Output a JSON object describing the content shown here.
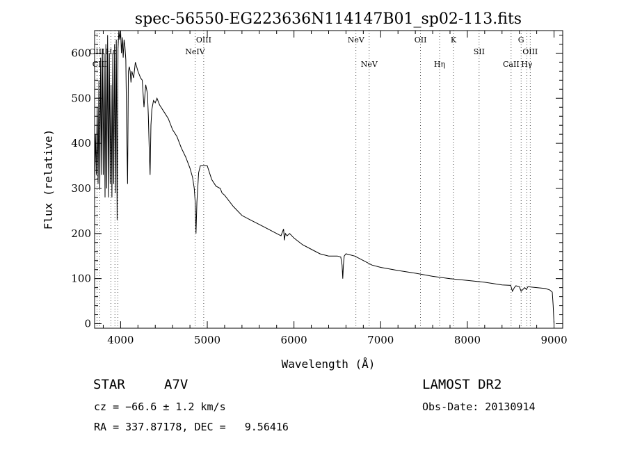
{
  "chart_data": {
    "type": "line",
    "title": "spec-56550-EG223636N114147B01_sp02-113.fits",
    "xlabel": "Wavelength (Å)",
    "ylabel": "Flux (relative)",
    "xlim": [
      3700,
      9100
    ],
    "ylim": [
      -10,
      650
    ],
    "xticks": [
      4000,
      5000,
      6000,
      7000,
      8000,
      9000
    ],
    "yticks": [
      0,
      100,
      200,
      300,
      400,
      500,
      600
    ],
    "grid": false,
    "series": [
      {
        "x": [
          3700,
          3710,
          3720,
          3730,
          3740,
          3750,
          3760,
          3770,
          3780,
          3790,
          3800,
          3810,
          3820,
          3830,
          3840,
          3850,
          3860,
          3870,
          3880,
          3890,
          3900,
          3910,
          3920,
          3930,
          3940,
          3950,
          3960,
          3970,
          3980,
          3990,
          4000,
          4010,
          4020,
          4030,
          4040,
          4050,
          4060,
          4070,
          4080,
          4090,
          4100,
          4110,
          4120,
          4130,
          4150,
          4170,
          4200,
          4230,
          4250,
          4270,
          4290,
          4310,
          4320,
          4330,
          4340,
          4350,
          4360,
          4380,
          4400,
          4420,
          4450,
          4500,
          4550,
          4600,
          4650,
          4700,
          4750,
          4800,
          4830,
          4850,
          4860,
          4870,
          4880,
          4900,
          4920,
          4950,
          5000,
          5050,
          5100,
          5150,
          5170,
          5200,
          5300,
          5400,
          5500,
          5600,
          5700,
          5800,
          5850,
          5880,
          5890,
          5900,
          5920,
          5950,
          6000,
          6100,
          6200,
          6300,
          6400,
          6500,
          6540,
          6555,
          6563,
          6570,
          6580,
          6600,
          6700,
          6800,
          6900,
          7000,
          7200,
          7400,
          7600,
          7800,
          8000,
          8200,
          8400,
          8500,
          8520,
          8542,
          8560,
          8600,
          8620,
          8662,
          8680,
          8700,
          8800,
          8900,
          8950,
          8980,
          8990,
          9000
        ],
        "values": [
          300,
          420,
          330,
          480,
          310,
          540,
          300,
          590,
          330,
          610,
          330,
          600,
          280,
          620,
          300,
          640,
          280,
          600,
          310,
          530,
          280,
          600,
          310,
          620,
          290,
          630,
          230,
          610,
          650,
          630,
          650,
          600,
          635,
          590,
          630,
          615,
          585,
          440,
          310,
          560,
          570,
          560,
          535,
          560,
          545,
          580,
          560,
          545,
          540,
          480,
          530,
          510,
          460,
          390,
          330,
          440,
          475,
          495,
          490,
          500,
          485,
          470,
          455,
          430,
          415,
          390,
          370,
          345,
          325,
          300,
          270,
          200,
          270,
          335,
          350,
          350,
          350,
          320,
          305,
          300,
          290,
          285,
          260,
          240,
          230,
          220,
          210,
          200,
          195,
          210,
          185,
          200,
          195,
          200,
          190,
          175,
          165,
          155,
          150,
          150,
          148,
          130,
          100,
          130,
          150,
          155,
          150,
          140,
          130,
          125,
          118,
          112,
          105,
          100,
          96,
          92,
          86,
          85,
          72,
          80,
          84,
          82,
          72,
          80,
          76,
          82,
          80,
          78,
          75,
          70,
          40,
          0
        ],
        "name": ""
      }
    ],
    "spectral_lines": [
      {
        "label": "OIII",
        "wavelength": 3727,
        "row": 1
      },
      {
        "label": "CIII",
        "wavelength": 3760,
        "row": 2
      },
      {
        "label": "Hε",
        "wavelength": 3889,
        "row": 1
      },
      {
        "label": "",
        "wavelength": 3934,
        "row": 2
      },
      {
        "label": "",
        "wavelength": 3970,
        "row": 2
      },
      {
        "label": "OIII",
        "wavelength": 4959,
        "row": 0
      },
      {
        "label": "NeIV",
        "wavelength": 4859,
        "row": 1
      },
      {
        "label": "NeV",
        "wavelength": 6715,
        "row": 0
      },
      {
        "label": "NeV",
        "wavelength": 6868,
        "row": 2
      },
      {
        "label": "OII",
        "wavelength": 7460,
        "row": 0
      },
      {
        "label": "Hη",
        "wavelength": 7680,
        "row": 2
      },
      {
        "label": "K",
        "wavelength": 7840,
        "row": 0
      },
      {
        "label": "SII",
        "wavelength": 8136,
        "row": 1
      },
      {
        "label": "CaII",
        "wavelength": 8505,
        "row": 2
      },
      {
        "label": "G",
        "wavelength": 8620,
        "row": 0
      },
      {
        "label": "Hγ",
        "wavelength": 8685,
        "row": 2
      },
      {
        "label": "OIII",
        "wavelength": 8725,
        "row": 1
      }
    ]
  },
  "info": {
    "object_class": "STAR",
    "subclass": "A7V",
    "survey": "LAMOST DR2",
    "cz": "cz = −66.6 ± 1.2 km/s",
    "obs_date": "Obs-Date: 20130914",
    "coords": "RA = 337.87178, DEC =   9.56416"
  }
}
